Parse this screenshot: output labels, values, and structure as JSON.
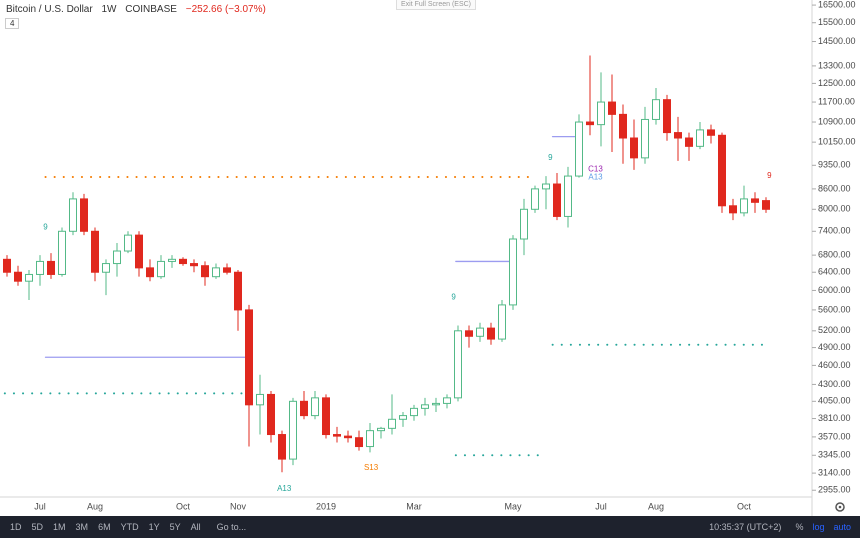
{
  "header": {
    "symbol": "Bitcoin / U.S. Dollar",
    "interval": "1W",
    "exchange": "COINBASE",
    "change": "−252.66 (−3.07%)",
    "badge": "4"
  },
  "exit_button": "Exit Full Screen (ESC)",
  "toolbar": {
    "ranges": [
      "1D",
      "5D",
      "1M",
      "3M",
      "6M",
      "YTD",
      "1Y",
      "5Y",
      "All"
    ],
    "goto": "Go to...",
    "clock": "10:35:37 (UTC+2)",
    "options": [
      "%",
      "log",
      "auto"
    ]
  },
  "chart_data": {
    "type": "candlestick",
    "log_scale": true,
    "grid": false,
    "up_color": "#53b987",
    "down_color": "#e0281e",
    "categories": [
      null,
      null,
      null,
      "Jul",
      null,
      null,
      null,
      null,
      "Aug",
      null,
      null,
      null,
      null,
      null,
      null,
      null,
      "Oct",
      null,
      null,
      null,
      null,
      "Nov",
      null,
      null,
      null,
      null,
      null,
      null,
      null,
      "2019",
      null,
      null,
      null,
      null,
      null,
      null,
      null,
      "Mar",
      null,
      null,
      null,
      null,
      null,
      null,
      null,
      null,
      "May",
      null,
      null,
      null,
      null,
      null,
      null,
      null,
      "Jul",
      null,
      null,
      null,
      null,
      "Aug",
      null,
      null,
      null,
      null,
      null,
      null,
      null,
      "Oct",
      null,
      null
    ],
    "open": [
      6700,
      6400,
      6200,
      6350,
      6650,
      6350,
      7400,
      8300,
      7400,
      6400,
      6600,
      6900,
      7300,
      6500,
      6300,
      6650,
      6700,
      6600,
      6550,
      6300,
      6500,
      6400,
      5600,
      4000,
      4150,
      3600,
      3300,
      4050,
      3850,
      4100,
      3600,
      3580,
      3560,
      3450,
      3650,
      3680,
      3800,
      3850,
      3950,
      4000,
      4020,
      4100,
      5200,
      5100,
      5250,
      5050,
      5700,
      7200,
      8000,
      8600,
      8750,
      7800,
      9000,
      10900,
      10800,
      11700,
      11200,
      10300,
      9600,
      11000,
      11800,
      10500,
      10300,
      10000,
      10600,
      10400,
      8100,
      7900,
      8300,
      8250
    ],
    "high": [
      6800,
      6550,
      6450,
      6800,
      6850,
      7500,
      8500,
      8450,
      7500,
      6700,
      7100,
      7400,
      7400,
      6700,
      6800,
      6800,
      6750,
      6700,
      6650,
      6600,
      6600,
      6450,
      5700,
      4450,
      4200,
      3650,
      4100,
      4200,
      4200,
      4150,
      3700,
      3650,
      3650,
      3750,
      3700,
      4150,
      3900,
      4000,
      4100,
      4100,
      4150,
      5300,
      5300,
      5350,
      5350,
      5800,
      7300,
      8300,
      8700,
      9000,
      9100,
      9300,
      11200,
      13800,
      13000,
      12900,
      11600,
      11000,
      11500,
      12300,
      12000,
      11100,
      10500,
      10900,
      10800,
      10500,
      8300,
      8700,
      8500,
      8350
    ],
    "low": [
      6300,
      6100,
      5800,
      6100,
      6250,
      6300,
      7300,
      7300,
      6200,
      5900,
      6300,
      6850,
      6300,
      6200,
      6250,
      6500,
      6550,
      6400,
      6100,
      6250,
      6350,
      5200,
      3450,
      3600,
      3500,
      3150,
      3230,
      3800,
      3800,
      3550,
      3500,
      3500,
      3400,
      3380,
      3550,
      3600,
      3700,
      3780,
      3850,
      3900,
      3950,
      4050,
      4900,
      5000,
      4950,
      5000,
      5600,
      6800,
      7900,
      8000,
      7700,
      7500,
      8950,
      10400,
      10000,
      9800,
      9400,
      9200,
      9400,
      10800,
      10200,
      9500,
      9500,
      9900,
      10100,
      7900,
      7700,
      7800,
      7900,
      7900
    ],
    "close": [
      6400,
      6200,
      6350,
      6650,
      6350,
      7400,
      8300,
      7400,
      6400,
      6600,
      6900,
      7300,
      6500,
      6300,
      6650,
      6700,
      6600,
      6550,
      6300,
      6500,
      6400,
      5600,
      4000,
      4150,
      3600,
      3300,
      4050,
      3850,
      4100,
      3600,
      3580,
      3560,
      3450,
      3650,
      3680,
      3800,
      3850,
      3950,
      4000,
      4020,
      4100,
      5200,
      5100,
      5250,
      5050,
      5700,
      7200,
      8000,
      8600,
      8750,
      7800,
      9000,
      10900,
      10800,
      11700,
      11200,
      10300,
      9600,
      11000,
      11800,
      10500,
      10300,
      10000,
      10600,
      10400,
      8100,
      7900,
      8300,
      8200,
      8000
    ],
    "ylim": [
      2885,
      16800
    ],
    "yticks": [
      {
        "value": 16500,
        "label": "16500.00"
      },
      {
        "value": 15500,
        "label": "15500.00"
      },
      {
        "value": 14500,
        "label": "14500.00"
      },
      {
        "value": 13300,
        "label": "13300.00"
      },
      {
        "value": 12500,
        "label": "12500.00"
      },
      {
        "value": 11700,
        "label": "11700.00"
      },
      {
        "value": 10900,
        "label": "10900.00"
      },
      {
        "value": 10150,
        "label": "10150.00"
      },
      {
        "value": 9350,
        "label": "9350.00"
      },
      {
        "value": 8600,
        "label": "8600.00"
      },
      {
        "value": 8000,
        "label": "8000.00"
      },
      {
        "value": 7400,
        "label": "7400.00"
      },
      {
        "value": 6800,
        "label": "6800.00"
      },
      {
        "value": 6400,
        "label": "6400.00"
      },
      {
        "value": 6000,
        "label": "6000.00"
      },
      {
        "value": 5600,
        "label": "5600.00"
      },
      {
        "value": 5200,
        "label": "5200.00"
      },
      {
        "value": 4900,
        "label": "4900.00"
      },
      {
        "value": 4600,
        "label": "4600.00"
      },
      {
        "value": 4300,
        "label": "4300.00"
      },
      {
        "value": 4050,
        "label": "4050.00"
      },
      {
        "value": 3810,
        "label": "3810.00"
      },
      {
        "value": 3570,
        "label": "3570.00"
      },
      {
        "value": 3345,
        "label": "3345.00"
      },
      {
        "value": 3140,
        "label": "3140.00"
      },
      {
        "value": 2955,
        "label": "2955.00"
      }
    ],
    "levels": [
      {
        "value": 8970,
        "start": 3.5,
        "end": 48,
        "color": "#f57c00",
        "style": "dotted"
      },
      {
        "value": 4735,
        "start": 3.5,
        "end": 22,
        "color": "#9c9cf0",
        "style": "solid"
      },
      {
        "value": 4166,
        "start": -0.2,
        "end": 21.5,
        "color": "#26a69a",
        "style": "dotted"
      },
      {
        "value": 6650,
        "start": 40.8,
        "end": 45.8,
        "color": "#9c9cf0",
        "style": "solid"
      },
      {
        "value": 3345,
        "start": 40.8,
        "end": 48.8,
        "color": "#26a69a",
        "style": "dotted"
      },
      {
        "value": 10350,
        "start": 49.6,
        "end": 51.6,
        "color": "#9c9cf0",
        "style": "solid"
      },
      {
        "value": 4950,
        "start": 49.6,
        "end": 69.3,
        "color": "#26a69a",
        "style": "dotted"
      }
    ],
    "annotations": [
      {
        "text": "9",
        "index": 3.5,
        "price": 7500,
        "color": "#26a69a"
      },
      {
        "text": "9",
        "index": 40.6,
        "price": 5850,
        "color": "#26a69a"
      },
      {
        "text": "9",
        "index": 49.4,
        "price": 9600,
        "color": "#26a69a"
      },
      {
        "text": "C13",
        "index": 53.5,
        "price": 9220,
        "color": "#9c27b0"
      },
      {
        "text": "A13",
        "index": 53.5,
        "price": 8960,
        "color": "#5c9ce6"
      },
      {
        "text": "A13",
        "index": 25.2,
        "price": 2970,
        "color": "#26a69a"
      },
      {
        "text": "S13",
        "index": 33.1,
        "price": 3200,
        "color": "#f57c00"
      },
      {
        "text": "9",
        "index": 69.3,
        "price": 9000,
        "color": "#e0281e"
      }
    ]
  }
}
